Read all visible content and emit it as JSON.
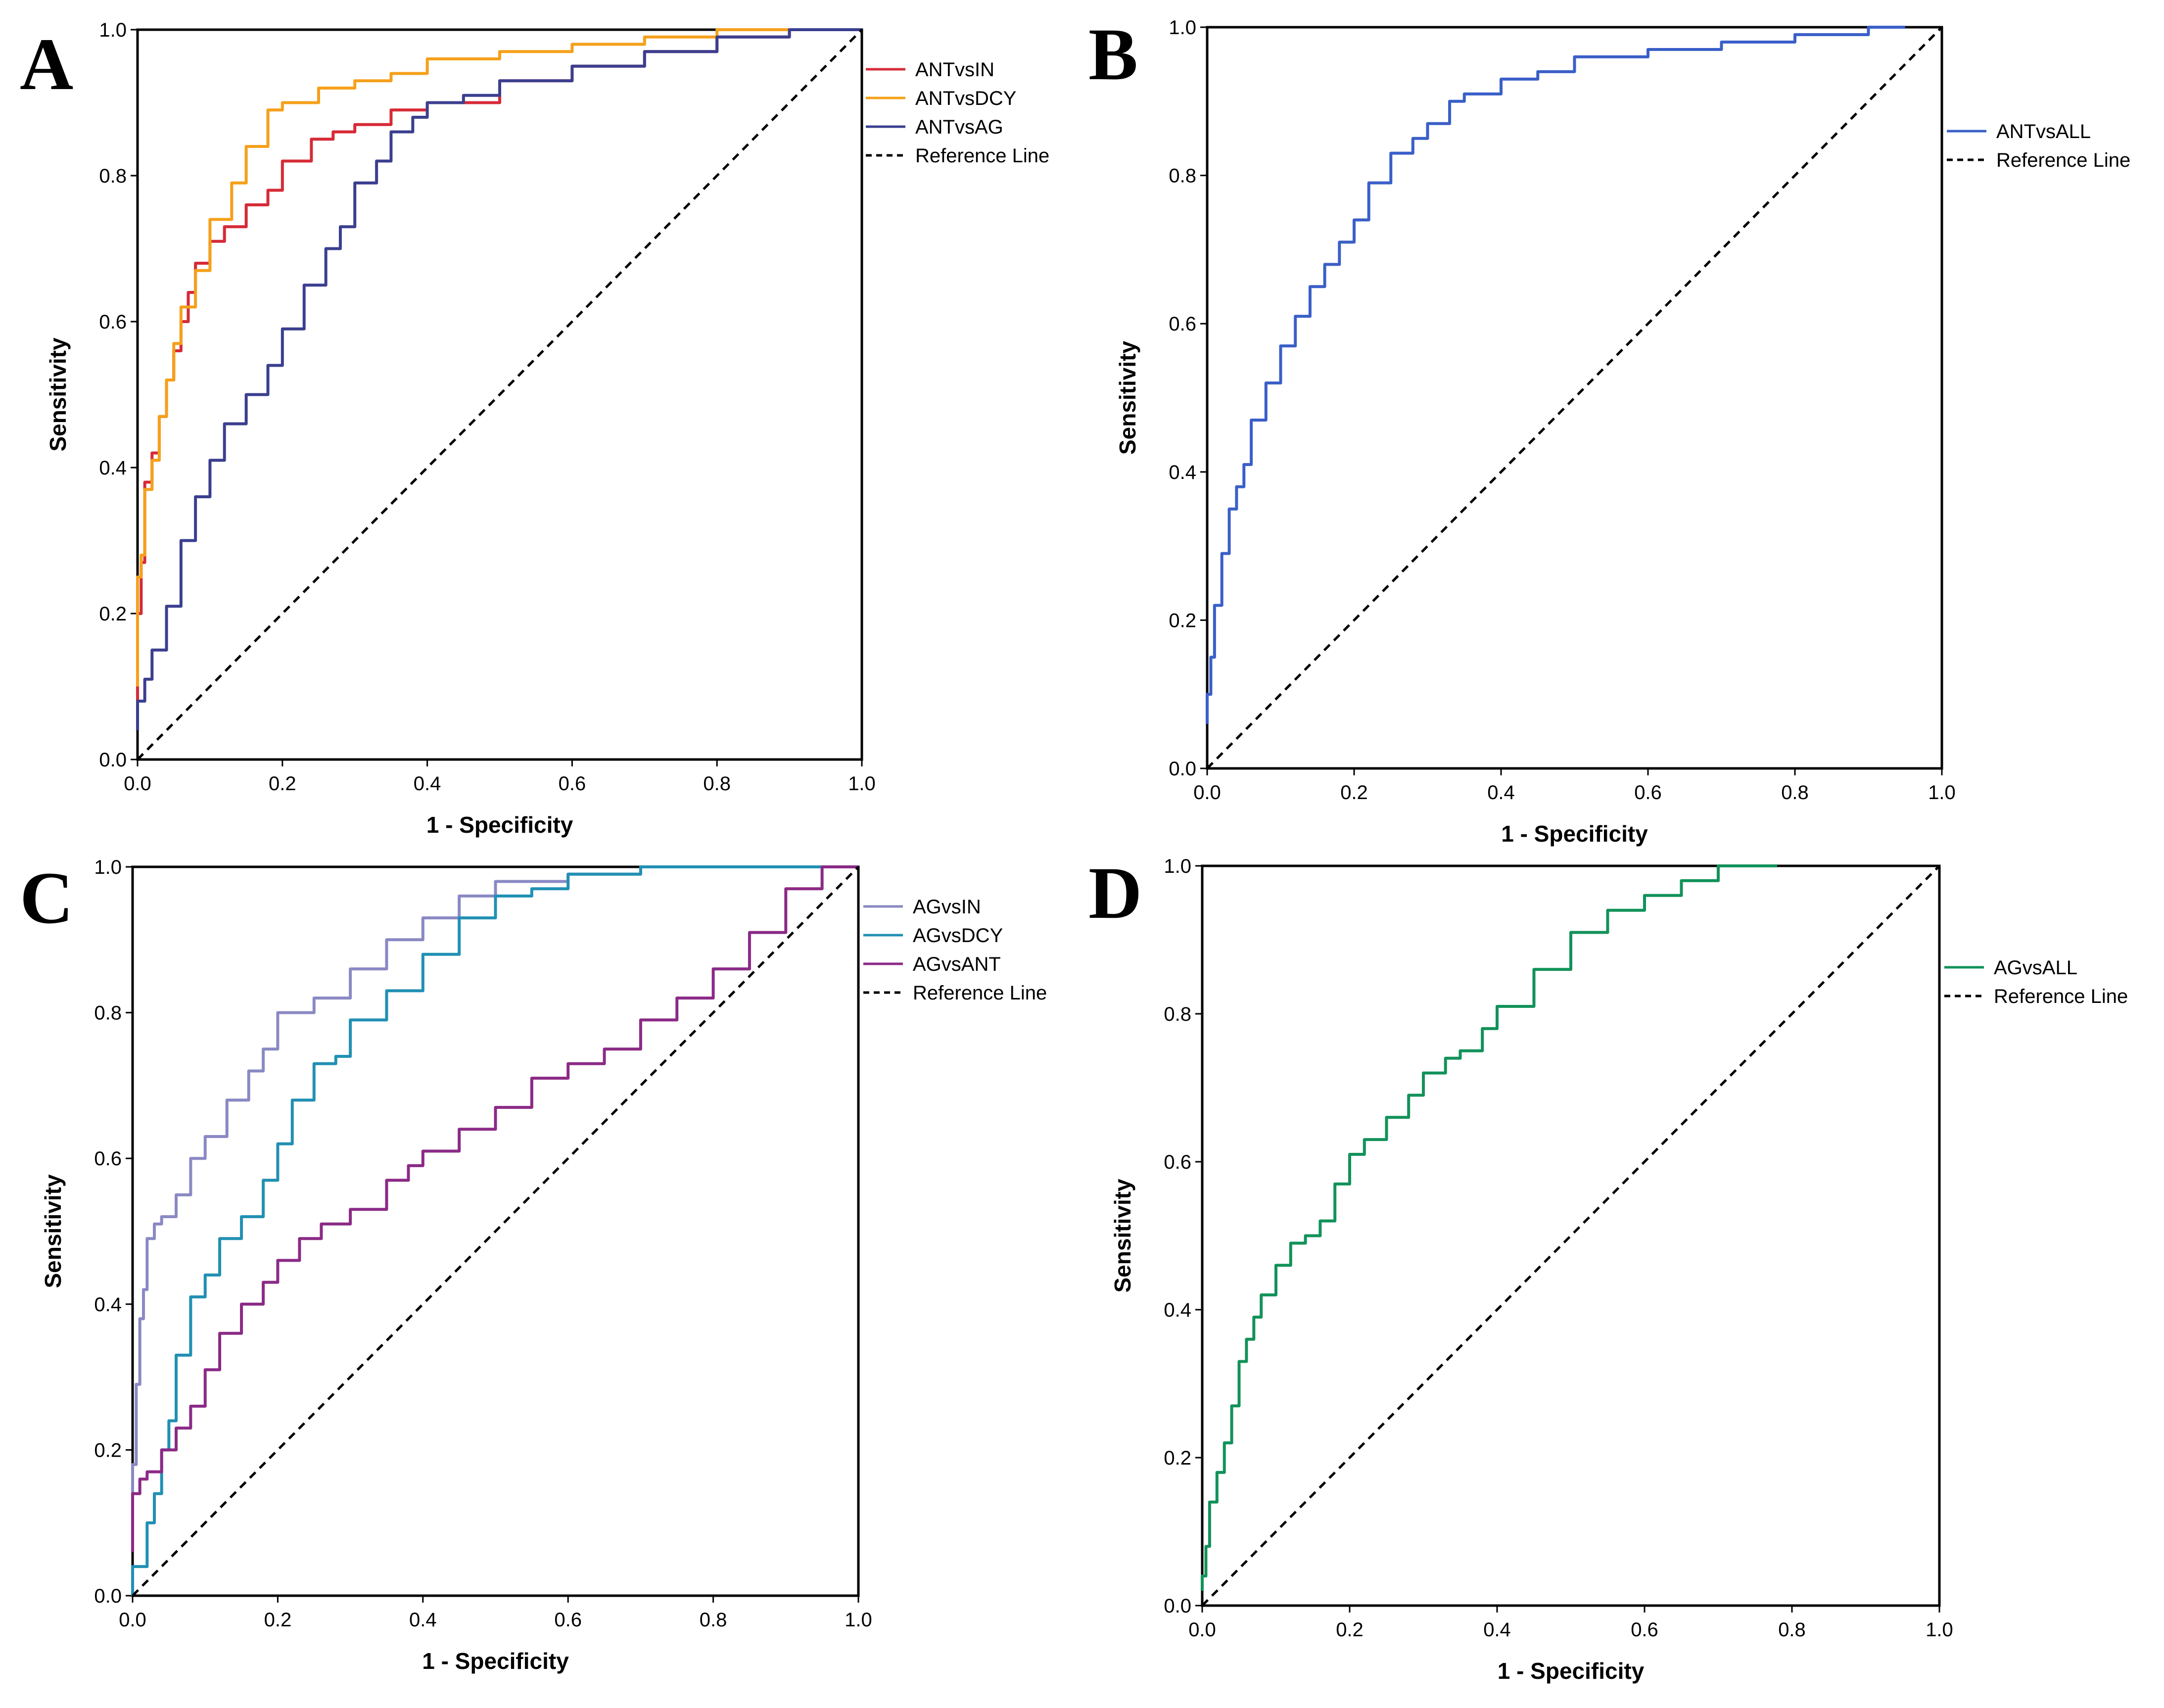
{
  "figure": {
    "description_note": "",
    "panels": [
      "A",
      "B",
      "C",
      "D"
    ]
  },
  "chart_data": [
    {
      "panel": "A",
      "type": "line",
      "title": "",
      "xlabel": "1 - Specificity",
      "ylabel": "Sensitivity",
      "xlim": [
        0,
        1
      ],
      "ylim": [
        0,
        1
      ],
      "xticks": [
        "0.0",
        "0.2",
        "0.4",
        "0.6",
        "0.8",
        "1.0"
      ],
      "yticks": [
        "0.0",
        "0.2",
        "0.4",
        "0.6",
        "0.8",
        "1.0"
      ],
      "legend_position": "right",
      "series": [
        {
          "name": "ANTvsIN",
          "color": "#d62b37",
          "dashed": false,
          "x": [
            0,
            0.005,
            0.01,
            0.02,
            0.03,
            0.04,
            0.05,
            0.06,
            0.07,
            0.08,
            0.1,
            0.12,
            0.15,
            0.18,
            0.2,
            0.24,
            0.27,
            0.3,
            0.35,
            0.4,
            0.5,
            0.6,
            0.7,
            0.8,
            0.9,
            1.0
          ],
          "y": [
            0.05,
            0.2,
            0.27,
            0.38,
            0.42,
            0.47,
            0.52,
            0.56,
            0.6,
            0.64,
            0.68,
            0.71,
            0.73,
            0.76,
            0.78,
            0.82,
            0.85,
            0.86,
            0.87,
            0.89,
            0.9,
            0.93,
            0.95,
            0.97,
            0.99,
            1.0
          ]
        },
        {
          "name": "ANTvsDCY",
          "color": "#f5a01a",
          "dashed": false,
          "x": [
            0,
            0.005,
            0.01,
            0.02,
            0.03,
            0.04,
            0.05,
            0.06,
            0.08,
            0.1,
            0.13,
            0.15,
            0.18,
            0.2,
            0.25,
            0.3,
            0.35,
            0.4,
            0.5,
            0.6,
            0.7,
            0.8,
            0.9,
            1.0
          ],
          "y": [
            0.1,
            0.25,
            0.28,
            0.37,
            0.41,
            0.47,
            0.52,
            0.57,
            0.62,
            0.67,
            0.74,
            0.79,
            0.84,
            0.89,
            0.9,
            0.92,
            0.93,
            0.94,
            0.96,
            0.97,
            0.98,
            0.99,
            1.0,
            1.0
          ]
        },
        {
          "name": "ANTvsAG",
          "color": "#3b3f8f",
          "dashed": false,
          "x": [
            0,
            0.01,
            0.02,
            0.04,
            0.06,
            0.08,
            0.1,
            0.12,
            0.15,
            0.18,
            0.2,
            0.23,
            0.26,
            0.28,
            0.3,
            0.33,
            0.35,
            0.38,
            0.4,
            0.45,
            0.5,
            0.6,
            0.7,
            0.8,
            0.9,
            1.0
          ],
          "y": [
            0.04,
            0.08,
            0.11,
            0.15,
            0.21,
            0.3,
            0.36,
            0.41,
            0.46,
            0.5,
            0.54,
            0.59,
            0.65,
            0.7,
            0.73,
            0.79,
            0.82,
            0.86,
            0.88,
            0.9,
            0.91,
            0.93,
            0.95,
            0.97,
            0.99,
            1.0
          ]
        },
        {
          "name": "Reference Line",
          "color": "#000000",
          "dashed": true,
          "x": [
            0,
            1
          ],
          "y": [
            0,
            1
          ]
        }
      ]
    },
    {
      "panel": "B",
      "type": "line",
      "title": "",
      "xlabel": "1 - Specificity",
      "ylabel": "Sensitivity",
      "xlim": [
        0,
        1
      ],
      "ylim": [
        0,
        1
      ],
      "xticks": [
        "0.0",
        "0.2",
        "0.4",
        "0.6",
        "0.8",
        "1.0"
      ],
      "yticks": [
        "0.0",
        "0.2",
        "0.4",
        "0.6",
        "0.8",
        "1.0"
      ],
      "legend_position": "right",
      "series": [
        {
          "name": "ANTvsALL",
          "color": "#3a5fc8",
          "dashed": false,
          "x": [
            0,
            0.005,
            0.01,
            0.02,
            0.03,
            0.04,
            0.05,
            0.06,
            0.08,
            0.1,
            0.12,
            0.14,
            0.16,
            0.18,
            0.2,
            0.22,
            0.25,
            0.28,
            0.3,
            0.33,
            0.35,
            0.4,
            0.45,
            0.5,
            0.6,
            0.7,
            0.8,
            0.9,
            0.95
          ],
          "y": [
            0.06,
            0.1,
            0.15,
            0.22,
            0.29,
            0.35,
            0.38,
            0.41,
            0.47,
            0.52,
            0.57,
            0.61,
            0.65,
            0.68,
            0.71,
            0.74,
            0.79,
            0.83,
            0.85,
            0.87,
            0.9,
            0.91,
            0.93,
            0.94,
            0.96,
            0.97,
            0.98,
            0.99,
            1.0
          ]
        },
        {
          "name": "Reference Line",
          "color": "#000000",
          "dashed": true,
          "x": [
            0,
            1
          ],
          "y": [
            0,
            1
          ]
        }
      ]
    },
    {
      "panel": "C",
      "type": "line",
      "title": "",
      "xlabel": "1 - Specificity",
      "ylabel": "Sensitivity",
      "xlim": [
        0,
        1
      ],
      "ylim": [
        0,
        1
      ],
      "xticks": [
        "0.0",
        "0.2",
        "0.4",
        "0.6",
        "0.8",
        "1.0"
      ],
      "yticks": [
        "0.0",
        "0.2",
        "0.4",
        "0.6",
        "0.8",
        "1.0"
      ],
      "legend_position": "right",
      "series": [
        {
          "name": "AGvsIN",
          "color": "#8a89c4",
          "dashed": false,
          "x": [
            0,
            0.005,
            0.01,
            0.015,
            0.02,
            0.03,
            0.04,
            0.06,
            0.08,
            0.1,
            0.13,
            0.16,
            0.18,
            0.2,
            0.25,
            0.3,
            0.35,
            0.4,
            0.45,
            0.5,
            0.6,
            0.7,
            0.8,
            0.9,
            1.0
          ],
          "y": [
            0.1,
            0.18,
            0.29,
            0.38,
            0.42,
            0.49,
            0.51,
            0.52,
            0.55,
            0.6,
            0.63,
            0.68,
            0.72,
            0.75,
            0.8,
            0.82,
            0.86,
            0.9,
            0.93,
            0.96,
            0.98,
            0.99,
            1.0,
            1.0,
            1.0
          ]
        },
        {
          "name": "AGvsDCY",
          "color": "#2190b3",
          "dashed": false,
          "x": [
            0,
            0.02,
            0.03,
            0.04,
            0.05,
            0.06,
            0.08,
            0.1,
            0.12,
            0.15,
            0.18,
            0.2,
            0.22,
            0.25,
            0.28,
            0.3,
            0.35,
            0.4,
            0.45,
            0.5,
            0.55,
            0.6,
            0.7,
            0.8,
            0.9,
            1.0
          ],
          "y": [
            0,
            0.04,
            0.1,
            0.14,
            0.2,
            0.24,
            0.33,
            0.41,
            0.44,
            0.49,
            0.52,
            0.57,
            0.62,
            0.68,
            0.73,
            0.74,
            0.79,
            0.83,
            0.88,
            0.93,
            0.96,
            0.97,
            0.99,
            1.0,
            1.0,
            1.0
          ]
        },
        {
          "name": "AGvsANT",
          "color": "#8b2a86",
          "dashed": false,
          "x": [
            0,
            0.01,
            0.02,
            0.04,
            0.06,
            0.08,
            0.1,
            0.12,
            0.15,
            0.18,
            0.2,
            0.23,
            0.26,
            0.3,
            0.35,
            0.38,
            0.4,
            0.45,
            0.5,
            0.55,
            0.6,
            0.65,
            0.7,
            0.75,
            0.8,
            0.85,
            0.9,
            0.95,
            1.0
          ],
          "y": [
            0.06,
            0.14,
            0.16,
            0.17,
            0.2,
            0.23,
            0.26,
            0.31,
            0.36,
            0.4,
            0.43,
            0.46,
            0.49,
            0.51,
            0.53,
            0.57,
            0.59,
            0.61,
            0.64,
            0.67,
            0.71,
            0.73,
            0.75,
            0.79,
            0.82,
            0.86,
            0.91,
            0.97,
            1.0
          ]
        },
        {
          "name": "Reference Line",
          "color": "#000000",
          "dashed": true,
          "x": [
            0,
            1
          ],
          "y": [
            0,
            1
          ]
        }
      ]
    },
    {
      "panel": "D",
      "type": "line",
      "title": "",
      "xlabel": "1 - Specificity",
      "ylabel": "Sensitivity",
      "xlim": [
        0,
        1
      ],
      "ylim": [
        0,
        1
      ],
      "xticks": [
        "0.0",
        "0.2",
        "0.4",
        "0.6",
        "0.8",
        "1.0"
      ],
      "yticks": [
        "0.0",
        "0.2",
        "0.4",
        "0.6",
        "0.8",
        "1.0"
      ],
      "legend_position": "right",
      "series": [
        {
          "name": "AGvsALL",
          "color": "#12925a",
          "dashed": false,
          "x": [
            0,
            0.005,
            0.01,
            0.02,
            0.03,
            0.04,
            0.05,
            0.06,
            0.07,
            0.08,
            0.1,
            0.12,
            0.14,
            0.16,
            0.18,
            0.2,
            0.22,
            0.25,
            0.28,
            0.3,
            0.33,
            0.35,
            0.38,
            0.4,
            0.45,
            0.5,
            0.55,
            0.6,
            0.65,
            0.7,
            0.78
          ],
          "y": [
            0.02,
            0.04,
            0.08,
            0.14,
            0.18,
            0.22,
            0.27,
            0.33,
            0.36,
            0.39,
            0.42,
            0.46,
            0.49,
            0.5,
            0.52,
            0.57,
            0.61,
            0.63,
            0.66,
            0.69,
            0.72,
            0.74,
            0.75,
            0.78,
            0.81,
            0.86,
            0.91,
            0.94,
            0.96,
            0.98,
            1.0
          ]
        },
        {
          "name": "Reference Line",
          "color": "#000000",
          "dashed": true,
          "x": [
            0,
            1
          ],
          "y": [
            0,
            1
          ]
        }
      ]
    }
  ]
}
